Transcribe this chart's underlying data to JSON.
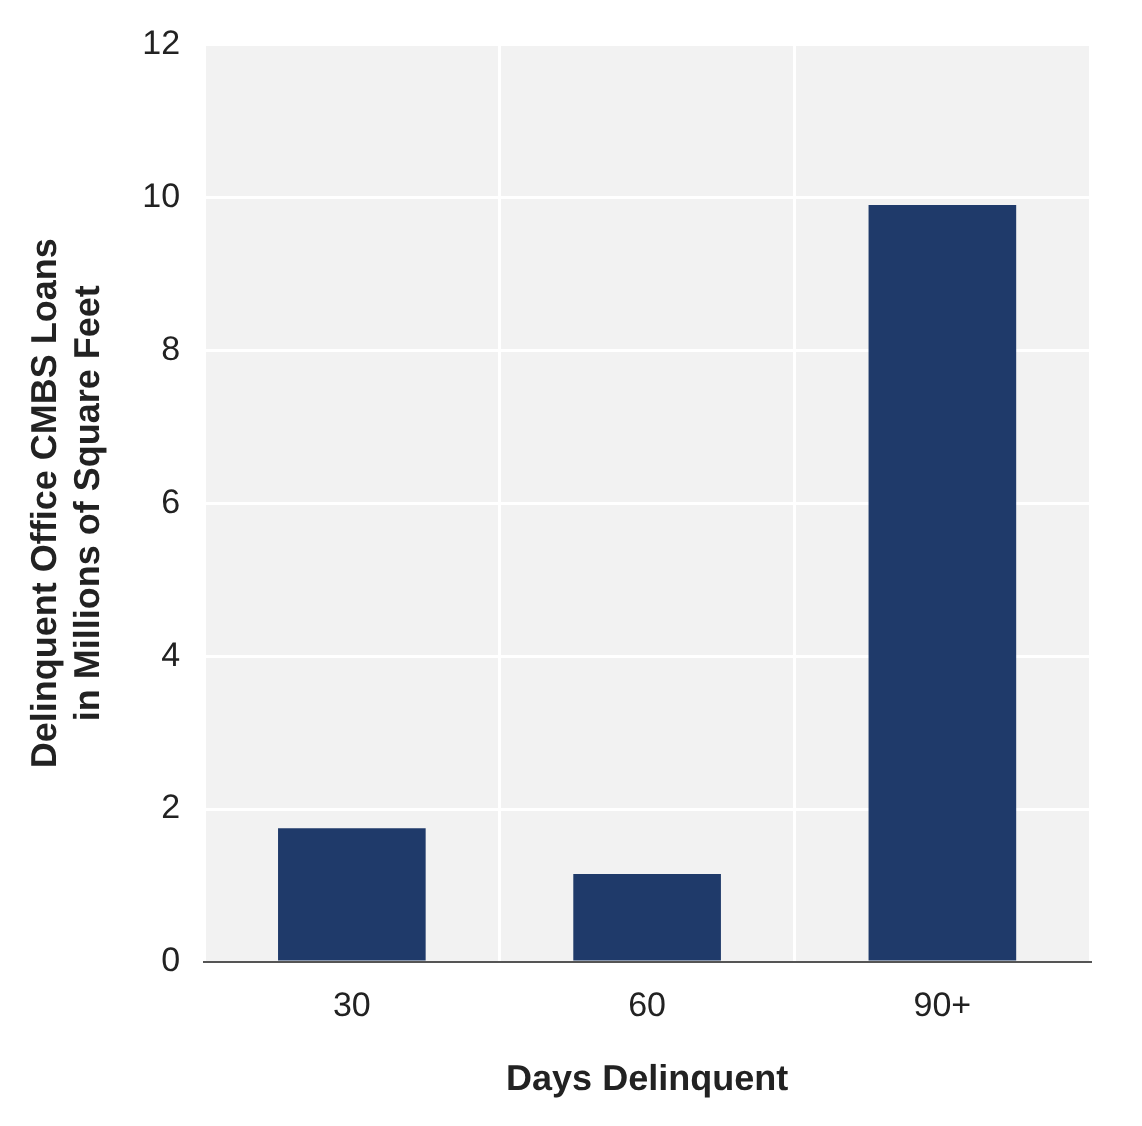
{
  "chart_data": {
    "type": "bar",
    "categories": [
      "30",
      "60",
      "90+"
    ],
    "values": [
      1.75,
      1.15,
      9.9
    ],
    "color": "#1f3a6a",
    "xlabel": "Days Delinquent",
    "ylabel": "Delinquent Office CMBS Loans\nin Millions of Square Feet",
    "ylim": [
      0,
      12
    ],
    "yticks": [
      0,
      2,
      4,
      6,
      8,
      10,
      12
    ],
    "grid": true
  }
}
